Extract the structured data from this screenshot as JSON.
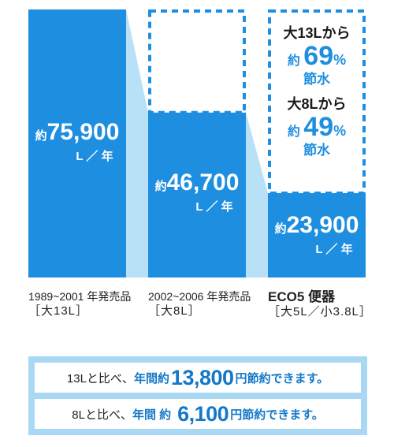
{
  "chart_data": {
    "type": "bar",
    "categories": [
      "1989~2001 年発売品",
      "2002~2006 年発売品",
      "ECO5 便器"
    ],
    "category_sublabels": [
      "［大13L］",
      "［大8L］",
      "［大5L／小3.8L］"
    ],
    "values": [
      75900,
      46700,
      23900
    ],
    "value_prefix": "約",
    "value_labels": [
      "75,900",
      "46,700",
      "23,900"
    ],
    "unit_label": "L ／ 年",
    "ylim": [
      0,
      75900
    ],
    "reference_boxes": [
      {
        "category_index": 1,
        "reference_value": 75900
      },
      {
        "category_index": 2,
        "reference_value": 75900
      }
    ],
    "annotations": [
      {
        "line1": "大13Lから",
        "prefix": "約",
        "number": "69",
        "suffix": "%",
        "line3": "節水"
      },
      {
        "line1": "大8Lから",
        "prefix": "約",
        "number": "49",
        "suffix": "%",
        "line3": "節水"
      }
    ],
    "colors": {
      "bar": "#1e8fe0",
      "connector": "#b8e0f7",
      "dashed": "#1e8fe0"
    }
  },
  "banner": {
    "rows": [
      {
        "lead": "13Lと比べ、",
        "strong": "年間約",
        "amount": "13,800",
        "unit": "円",
        "tail": "節約できます。"
      },
      {
        "lead": "8Lと比べ、",
        "strong": "年間 約",
        "amount": "6,100",
        "unit": "円",
        "tail": "節約できます。"
      }
    ],
    "background": "#a9d8f5"
  }
}
